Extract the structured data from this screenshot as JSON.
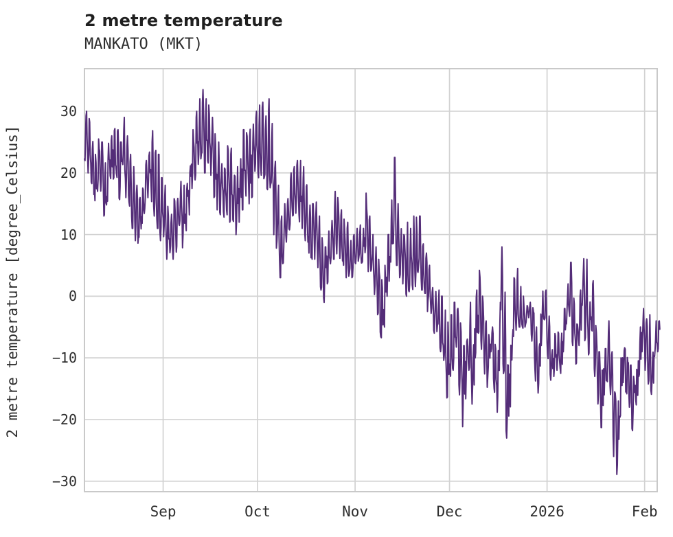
{
  "header": {
    "title": "2 metre temperature",
    "subtitle": "MANKATO (MKT)"
  },
  "chart_data": {
    "type": "line",
    "title": "2 metre temperature",
    "subtitle": "MANKATO (MKT)",
    "station": "MANKATO (MKT)",
    "xlabel": "",
    "ylabel": "2 metre temperature [degree_Celsius]",
    "grid": true,
    "legend": "none",
    "background": "#ffffff",
    "grid_color": "#d2d2d2",
    "border_color": "#c9c9c9",
    "series_color": "#542d78",
    "text_color": "#2d2d2d",
    "ylim": [
      -31.7,
      36.9
    ],
    "y_ticks": [
      {
        "label": "30",
        "value": 30
      },
      {
        "label": "20",
        "value": 20
      },
      {
        "label": "10",
        "value": 10
      },
      {
        "label": "0",
        "value": 0
      },
      {
        "label": "−10",
        "value": -10
      },
      {
        "label": "−20",
        "value": -20
      },
      {
        "label": "−30",
        "value": -30
      }
    ],
    "x_unit": "days",
    "x_domain_days": [
      0,
      182
    ],
    "x_ticks": [
      {
        "label": "Sep",
        "day": 25
      },
      {
        "label": "Oct",
        "day": 55
      },
      {
        "label": "Nov",
        "day": 86
      },
      {
        "label": "Dec",
        "day": 116
      },
      {
        "label": "2026",
        "day": 147
      },
      {
        "label": "Feb",
        "day": 178
      }
    ],
    "series": [
      {
        "name": "2 metre temperature",
        "points_per_day": 6,
        "note": "hourly-noise temperature trace summarized as one [min,max] envelope pair per day, day 0 at left edge of plot (late Aug 2025) through early Feb 2026",
        "daily_envelope_min_max": [
          [
            22,
            30
          ],
          [
            20,
            29.5
          ],
          [
            18,
            26
          ],
          [
            15,
            23
          ],
          [
            17,
            26
          ],
          [
            16,
            25
          ],
          [
            13,
            22
          ],
          [
            14,
            25
          ],
          [
            18,
            28
          ],
          [
            19,
            28
          ],
          [
            17,
            27
          ],
          [
            15,
            25
          ],
          [
            18,
            29
          ],
          [
            16,
            26
          ],
          [
            13,
            23
          ],
          [
            11,
            21
          ],
          [
            9,
            18
          ],
          [
            7,
            16
          ],
          [
            10,
            19
          ],
          [
            12,
            22
          ],
          [
            14,
            25
          ],
          [
            15,
            27
          ],
          [
            13,
            26
          ],
          [
            11,
            23
          ],
          [
            9,
            20
          ],
          [
            8,
            18
          ],
          [
            6,
            15
          ],
          [
            5,
            14
          ],
          [
            6,
            16
          ],
          [
            7,
            17
          ],
          [
            8,
            19
          ],
          [
            7,
            18
          ],
          [
            9,
            21
          ],
          [
            12,
            24
          ],
          [
            15,
            27
          ],
          [
            18,
            30
          ],
          [
            20,
            32
          ],
          [
            21,
            33.5
          ],
          [
            20,
            32
          ],
          [
            19,
            31
          ],
          [
            18,
            29
          ],
          [
            16,
            27
          ],
          [
            14,
            25
          ],
          [
            13,
            24
          ],
          [
            12,
            23
          ],
          [
            13,
            25
          ],
          [
            12,
            24
          ],
          [
            11,
            22
          ],
          [
            10,
            21
          ],
          [
            12,
            24
          ],
          [
            14,
            27
          ],
          [
            16,
            29
          ],
          [
            15,
            28
          ],
          [
            16,
            29
          ],
          [
            17,
            30
          ],
          [
            18,
            31
          ],
          [
            19,
            32
          ],
          [
            17,
            30
          ],
          [
            16,
            32
          ],
          [
            14,
            28
          ],
          [
            10,
            24
          ],
          [
            6,
            18
          ],
          [
            3,
            13
          ],
          [
            5,
            15
          ],
          [
            8,
            18
          ],
          [
            10,
            20
          ],
          [
            11,
            21
          ],
          [
            12,
            22
          ],
          [
            12,
            22
          ],
          [
            11,
            21
          ],
          [
            9,
            19
          ],
          [
            7,
            16
          ],
          [
            6,
            15
          ],
          [
            6,
            16
          ],
          [
            4,
            13
          ],
          [
            1,
            10
          ],
          [
            -1,
            8
          ],
          [
            2,
            11
          ],
          [
            5,
            15
          ],
          [
            6,
            17
          ],
          [
            5,
            16
          ],
          [
            4,
            14
          ],
          [
            4,
            13
          ],
          [
            3,
            12
          ],
          [
            3,
            11
          ],
          [
            2,
            10
          ],
          [
            3,
            11
          ],
          [
            4,
            12
          ],
          [
            3,
            11
          ],
          [
            5,
            17
          ],
          [
            4,
            13
          ],
          [
            2,
            10
          ],
          [
            0,
            8
          ],
          [
            -3,
            6
          ],
          [
            -8,
            3
          ],
          [
            -5,
            5
          ],
          [
            0,
            10
          ],
          [
            5,
            16
          ],
          [
            8,
            22.5
          ],
          [
            5,
            15
          ],
          [
            3,
            11
          ],
          [
            2,
            10
          ],
          [
            0,
            12
          ],
          [
            -2,
            11
          ],
          [
            0,
            13
          ],
          [
            1,
            13
          ],
          [
            2,
            13
          ],
          [
            1,
            10
          ],
          [
            0,
            7
          ],
          [
            -3,
            5
          ],
          [
            -5,
            3
          ],
          [
            -6,
            2
          ],
          [
            -7,
            1
          ],
          [
            -10,
            0
          ],
          [
            -14,
            -2
          ],
          [
            -16.5,
            -4
          ],
          [
            -15,
            -3
          ],
          [
            -12,
            -1
          ],
          [
            -10,
            0.5
          ],
          [
            -16,
            -2
          ],
          [
            -22.5,
            -8
          ],
          [
            -17,
            -4
          ],
          [
            -12,
            -1
          ],
          [
            -17.5,
            -5
          ],
          [
            -10,
            1
          ],
          [
            -6,
            4.2
          ],
          [
            -10,
            0
          ],
          [
            -14,
            -4
          ],
          [
            -15,
            -6
          ],
          [
            -9,
            -5
          ],
          [
            -17,
            -6
          ],
          [
            -18.8,
            -8
          ],
          [
            -5,
            8
          ],
          [
            -15,
            2
          ],
          [
            -23,
            -10
          ],
          [
            -18,
            -6
          ],
          [
            -8,
            3
          ],
          [
            -6,
            4.5
          ],
          [
            -5,
            2
          ],
          [
            -7,
            0
          ],
          [
            -6,
            -0.5
          ],
          [
            -4,
            -1
          ],
          [
            -8,
            -1
          ],
          [
            -14.5,
            -5
          ],
          [
            -15.8,
            -7
          ],
          [
            -8,
            1.5
          ],
          [
            -6,
            1
          ],
          [
            -12,
            -2
          ],
          [
            -15,
            -8
          ],
          [
            -13,
            -5
          ],
          [
            -12,
            -4.5
          ],
          [
            -13,
            -6
          ],
          [
            -9,
            -2
          ],
          [
            -5,
            2
          ],
          [
            -4,
            5.5
          ],
          [
            -8,
            0
          ],
          [
            -11,
            -3
          ],
          [
            -9,
            1
          ],
          [
            -4,
            7
          ],
          [
            -8,
            6
          ],
          [
            -9.5,
            0
          ],
          [
            -6,
            2.5
          ],
          [
            -13,
            -4
          ],
          [
            -18,
            -9
          ],
          [
            -21.3,
            -12
          ],
          [
            -16,
            -8.5
          ],
          [
            -14,
            -4
          ],
          [
            -17,
            -9
          ],
          [
            -26,
            -13
          ],
          [
            -28.9,
            -17
          ],
          [
            -21,
            -10
          ],
          [
            -14,
            -6.5
          ],
          [
            -16,
            -9
          ],
          [
            -18,
            -10
          ],
          [
            -21.8,
            -13
          ],
          [
            -18,
            -11
          ],
          [
            -13,
            -5
          ],
          [
            -9,
            -2
          ],
          [
            -12,
            -2
          ],
          [
            -16.8,
            -3
          ],
          [
            -17,
            -8
          ],
          [
            -12,
            -4
          ],
          [
            -9,
            -4
          ]
        ]
      }
    ]
  }
}
